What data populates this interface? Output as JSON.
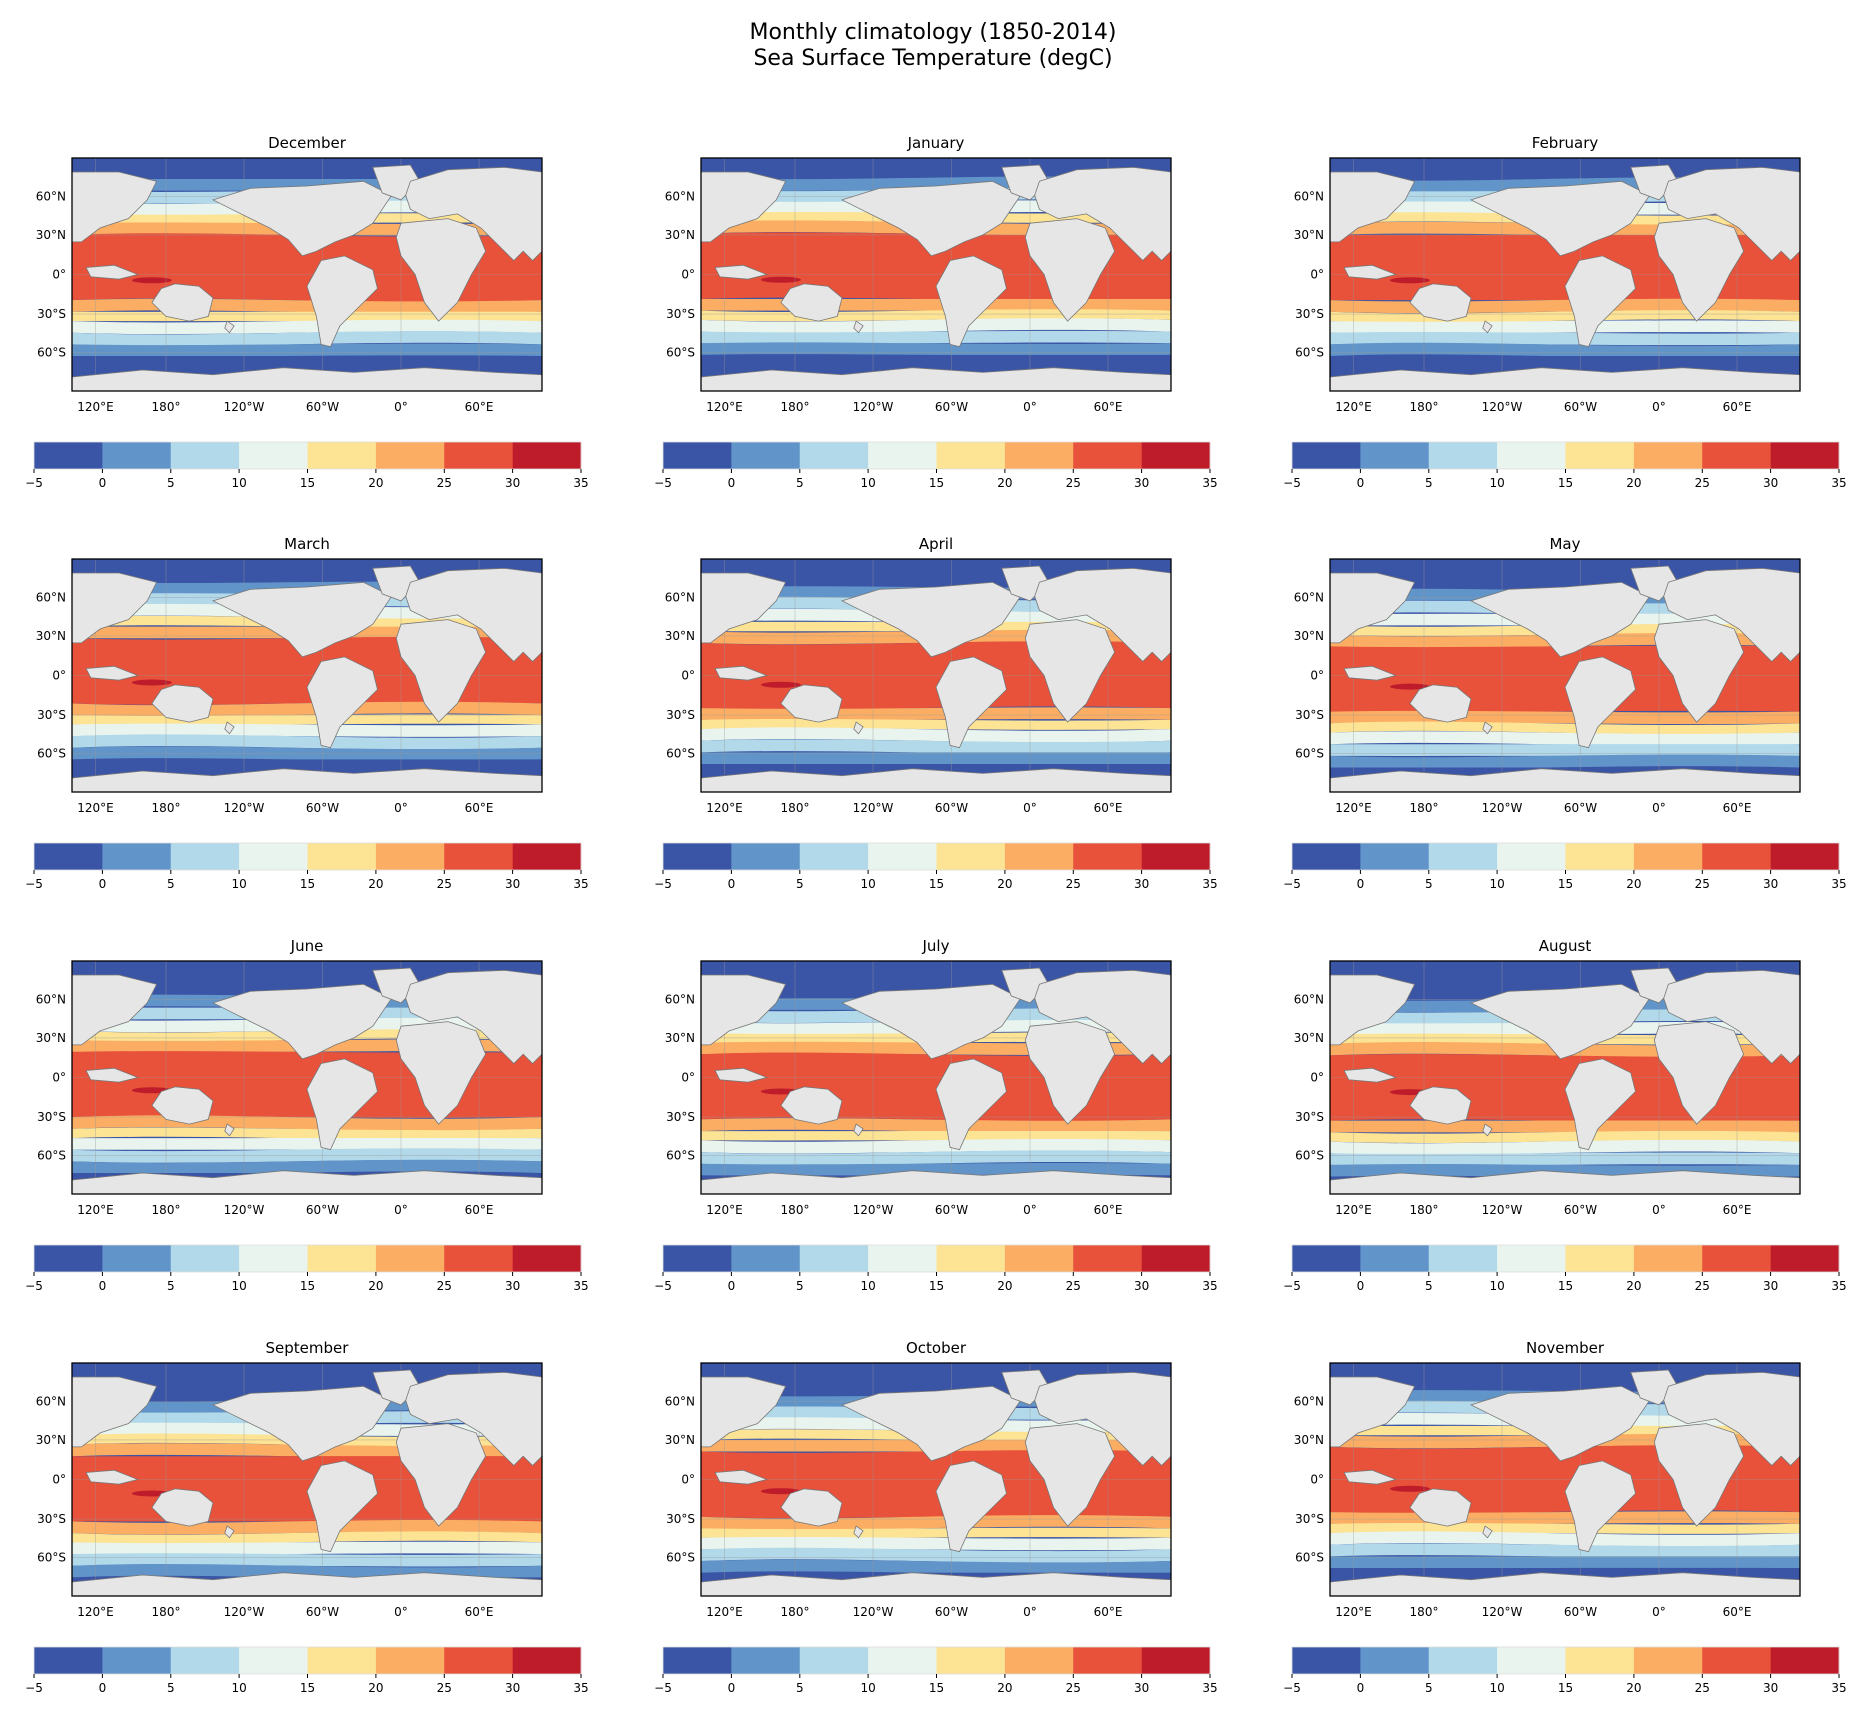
{
  "figure": {
    "title_line1": "Monthly climatology (1850-2014)",
    "title_line2": "Sea Surface Temperature (degC)"
  },
  "chart_data": {
    "type": "map",
    "projection": "PlateCarree (central longitude 180°)",
    "variable": "Sea Surface Temperature (degC)",
    "period": "1850-2014",
    "land_color": "#e6e6e6",
    "lat_ticks": [
      "60°N",
      "30°N",
      "0°",
      "30°S",
      "60°S"
    ],
    "lon_ticks": [
      "120°E",
      "180°",
      "120°W",
      "60°W",
      "0°",
      "60°E"
    ],
    "colorbar": {
      "levels": [
        -5,
        0,
        5,
        10,
        15,
        20,
        25,
        30,
        35
      ],
      "tick_labels": [
        "−5",
        "0",
        "5",
        "10",
        "15",
        "20",
        "25",
        "30",
        "35"
      ],
      "colors": [
        "#3b55a6",
        "#6194c8",
        "#b2d9ea",
        "#e8f4ed",
        "#fde394",
        "#fbae63",
        "#e8513a",
        "#be1c2b"
      ]
    },
    "panels": [
      {
        "title": "December"
      },
      {
        "title": "January"
      },
      {
        "title": "February"
      },
      {
        "title": "March"
      },
      {
        "title": "April"
      },
      {
        "title": "May"
      },
      {
        "title": "June"
      },
      {
        "title": "July"
      },
      {
        "title": "August"
      },
      {
        "title": "September"
      },
      {
        "title": "October"
      },
      {
        "title": "November"
      }
    ]
  }
}
